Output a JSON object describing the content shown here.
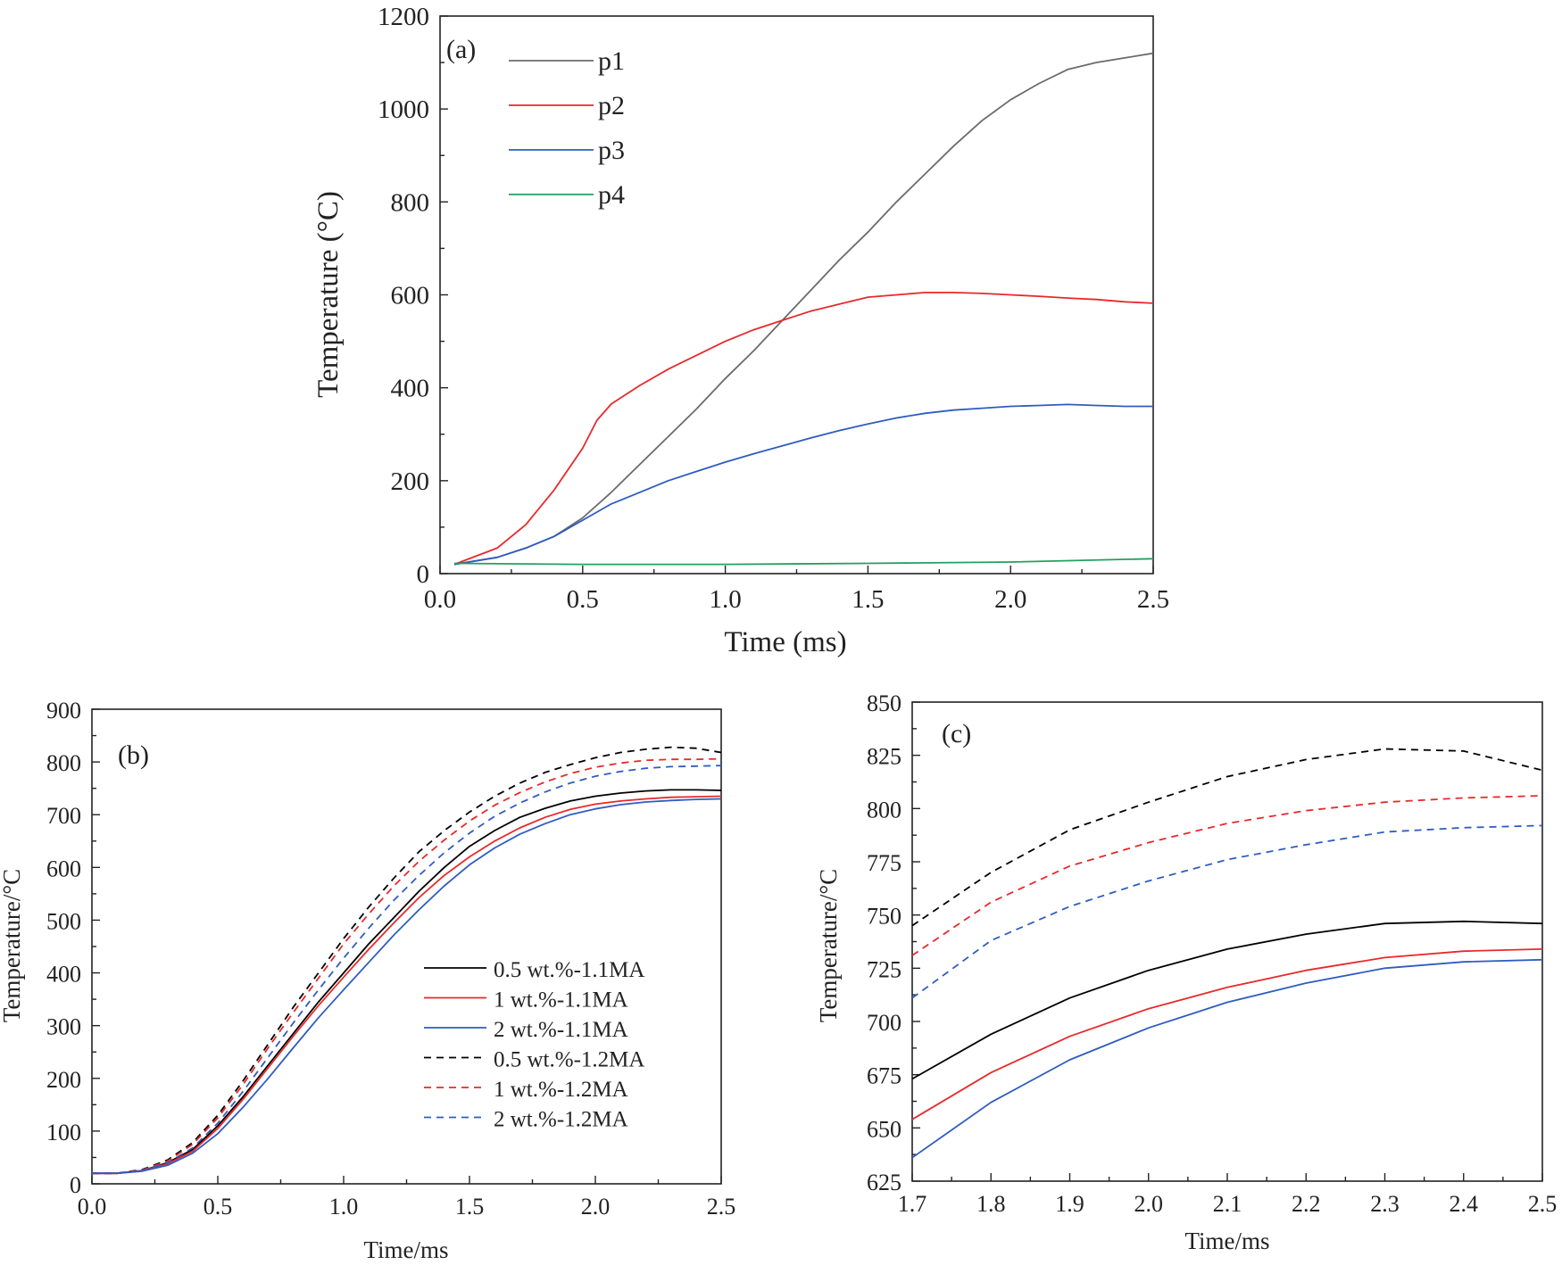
{
  "chart_data": [
    {
      "panel": "(a)",
      "type": "line",
      "xlabel": "Time (ms)",
      "ylabel": "Temperature (°C)",
      "xlim": [
        0,
        2.5
      ],
      "ylim": [
        0,
        1200
      ],
      "xticks": [
        "0.0",
        "0.5",
        "1.0",
        "1.5",
        "2.0",
        "2.5"
      ],
      "yticks": [
        "0",
        "200",
        "400",
        "600",
        "800",
        "1000",
        "1200"
      ],
      "legend_position": "top-left",
      "series": [
        {
          "name": "p1",
          "color": "#6b6b6b",
          "dash": "solid",
          "x": [
            0.05,
            0.2,
            0.3,
            0.4,
            0.5,
            0.6,
            0.7,
            0.8,
            0.9,
            1.0,
            1.1,
            1.2,
            1.3,
            1.4,
            1.5,
            1.6,
            1.7,
            1.8,
            1.9,
            2.0,
            2.1,
            2.2,
            2.3,
            2.4,
            2.5
          ],
          "y": [
            20,
            35,
            55,
            80,
            120,
            175,
            235,
            295,
            355,
            420,
            480,
            545,
            610,
            675,
            735,
            800,
            860,
            920,
            975,
            1020,
            1055,
            1085,
            1100,
            1110,
            1120
          ]
        },
        {
          "name": "p2",
          "color": "#e8292b",
          "dash": "solid",
          "x": [
            0.05,
            0.2,
            0.3,
            0.4,
            0.5,
            0.55,
            0.6,
            0.7,
            0.8,
            0.9,
            1.0,
            1.1,
            1.2,
            1.3,
            1.4,
            1.5,
            1.6,
            1.7,
            1.8,
            1.9,
            2.0,
            2.1,
            2.2,
            2.3,
            2.4,
            2.5
          ],
          "y": [
            20,
            55,
            105,
            180,
            270,
            330,
            365,
            405,
            440,
            470,
            500,
            525,
            545,
            565,
            580,
            595,
            600,
            605,
            605,
            603,
            600,
            597,
            593,
            590,
            585,
            582
          ]
        },
        {
          "name": "p3",
          "color": "#2f5cc0",
          "dash": "solid",
          "x": [
            0.05,
            0.2,
            0.3,
            0.4,
            0.5,
            0.6,
            0.7,
            0.8,
            0.9,
            1.0,
            1.1,
            1.2,
            1.3,
            1.4,
            1.5,
            1.6,
            1.7,
            1.8,
            1.9,
            2.0,
            2.1,
            2.2,
            2.3,
            2.4,
            2.5
          ],
          "y": [
            20,
            35,
            55,
            80,
            115,
            150,
            175,
            200,
            220,
            240,
            258,
            275,
            292,
            308,
            322,
            335,
            345,
            352,
            356,
            360,
            362,
            364,
            362,
            360,
            360
          ]
        },
        {
          "name": "p4",
          "color": "#23a060",
          "dash": "solid",
          "x": [
            0.05,
            0.5,
            1.0,
            1.5,
            2.0,
            2.5
          ],
          "y": [
            22,
            20,
            20,
            22,
            25,
            32
          ]
        }
      ]
    },
    {
      "panel": "(b)",
      "type": "line",
      "xlabel": "Time/ms",
      "ylabel": "Temperature/°C",
      "xlim": [
        0,
        2.5
      ],
      "ylim": [
        0,
        900
      ],
      "xticks": [
        "0.0",
        "0.5",
        "1.0",
        "1.5",
        "2.0",
        "2.5"
      ],
      "yticks": [
        "0",
        "100",
        "200",
        "300",
        "400",
        "500",
        "600",
        "700",
        "800",
        "900"
      ],
      "legend_position": "bottom-right",
      "series": [
        {
          "name": "0.5 wt.%-1.1MA",
          "color": "#000000",
          "dash": "solid",
          "x": [
            0,
            0.1,
            0.2,
            0.3,
            0.4,
            0.5,
            0.6,
            0.7,
            0.8,
            0.9,
            1.0,
            1.1,
            1.2,
            1.3,
            1.4,
            1.5,
            1.6,
            1.7,
            1.8,
            1.9,
            2.0,
            2.1,
            2.2,
            2.3,
            2.4,
            2.5
          ],
          "y": [
            20,
            20,
            25,
            40,
            65,
            110,
            165,
            225,
            285,
            345,
            400,
            455,
            505,
            555,
            600,
            640,
            670,
            695,
            712,
            726,
            735,
            741,
            745,
            747,
            747,
            746
          ]
        },
        {
          "name": "1 wt.%-1.1MA",
          "color": "#e8292b",
          "dash": "solid",
          "x": [
            0,
            0.1,
            0.2,
            0.3,
            0.4,
            0.5,
            0.6,
            0.7,
            0.8,
            0.9,
            1.0,
            1.1,
            1.2,
            1.3,
            1.4,
            1.5,
            1.6,
            1.7,
            1.8,
            1.9,
            2.0,
            2.1,
            2.2,
            2.3,
            2.4,
            2.5
          ],
          "y": [
            20,
            20,
            25,
            38,
            62,
            105,
            160,
            220,
            280,
            338,
            392,
            445,
            495,
            543,
            585,
            620,
            650,
            675,
            695,
            710,
            720,
            726,
            730,
            733,
            734,
            735
          ]
        },
        {
          "name": "2 wt.%-1.1MA",
          "color": "#2f5cc0",
          "dash": "solid",
          "x": [
            0,
            0.1,
            0.2,
            0.3,
            0.4,
            0.5,
            0.6,
            0.7,
            0.8,
            0.9,
            1.0,
            1.1,
            1.2,
            1.3,
            1.4,
            1.5,
            1.6,
            1.7,
            1.8,
            1.9,
            2.0,
            2.1,
            2.2,
            2.3,
            2.4,
            2.5
          ],
          "y": [
            20,
            20,
            24,
            35,
            58,
            95,
            145,
            200,
            258,
            315,
            368,
            420,
            472,
            520,
            565,
            605,
            637,
            663,
            683,
            700,
            711,
            719,
            724,
            727,
            729,
            730
          ]
        },
        {
          "name": "0.5 wt.%-1.2MA",
          "color": "#000000",
          "dash": "dashed",
          "x": [
            0,
            0.1,
            0.2,
            0.3,
            0.4,
            0.5,
            0.6,
            0.7,
            0.8,
            0.9,
            1.0,
            1.1,
            1.2,
            1.3,
            1.4,
            1.5,
            1.6,
            1.7,
            1.8,
            1.9,
            2.0,
            2.1,
            2.2,
            2.3,
            2.4,
            2.5
          ],
          "y": [
            20,
            20,
            27,
            45,
            78,
            130,
            195,
            265,
            335,
            400,
            465,
            525,
            580,
            630,
            670,
            705,
            735,
            760,
            780,
            795,
            808,
            818,
            824,
            828,
            826,
            818
          ]
        },
        {
          "name": "1 wt.%-1.2MA",
          "color": "#e8292b",
          "dash": "dashed",
          "x": [
            0,
            0.1,
            0.2,
            0.3,
            0.4,
            0.5,
            0.6,
            0.7,
            0.8,
            0.9,
            1.0,
            1.1,
            1.2,
            1.3,
            1.4,
            1.5,
            1.6,
            1.7,
            1.8,
            1.9,
            2.0,
            2.1,
            2.2,
            2.3,
            2.4,
            2.5
          ],
          "y": [
            20,
            20,
            26,
            43,
            75,
            125,
            188,
            258,
            325,
            390,
            455,
            512,
            565,
            612,
            652,
            688,
            718,
            742,
            762,
            778,
            790,
            798,
            803,
            805,
            805,
            806
          ]
        },
        {
          "name": "2 wt.%-1.2MA",
          "color": "#2f5cc0",
          "dash": "dashed",
          "x": [
            0,
            0.1,
            0.2,
            0.3,
            0.4,
            0.5,
            0.6,
            0.7,
            0.8,
            0.9,
            1.0,
            1.1,
            1.2,
            1.3,
            1.4,
            1.5,
            1.6,
            1.7,
            1.8,
            1.9,
            2.0,
            2.1,
            2.2,
            2.3,
            2.4,
            2.5
          ],
          "y": [
            20,
            20,
            25,
            40,
            68,
            115,
            175,
            240,
            305,
            368,
            428,
            485,
            538,
            585,
            628,
            665,
            697,
            722,
            743,
            760,
            773,
            782,
            788,
            791,
            792,
            793
          ]
        }
      ]
    },
    {
      "panel": "(c)",
      "type": "line",
      "xlabel": "Time/ms",
      "ylabel": "Temperature/°C",
      "xlim": [
        1.7,
        2.5
      ],
      "ylim": [
        625,
        850
      ],
      "xticks": [
        "1.7",
        "1.8",
        "1.9",
        "2.0",
        "2.1",
        "2.2",
        "2.3",
        "2.4",
        "2.5"
      ],
      "yticks": [
        "625",
        "650",
        "675",
        "700",
        "725",
        "750",
        "775",
        "800",
        "825",
        "850"
      ],
      "series": [
        {
          "name": "0.5 wt.%-1.1MA",
          "color": "#000000",
          "dash": "solid",
          "x": [
            1.7,
            1.8,
            1.9,
            2.0,
            2.1,
            2.2,
            2.3,
            2.4,
            2.5
          ],
          "y": [
            673,
            694,
            711,
            724,
            734,
            741,
            746,
            747,
            746
          ]
        },
        {
          "name": "1 wt.%-1.1MA",
          "color": "#e8292b",
          "dash": "solid",
          "x": [
            1.7,
            1.8,
            1.9,
            2.0,
            2.1,
            2.2,
            2.3,
            2.4,
            2.5
          ],
          "y": [
            654,
            676,
            693,
            706,
            716,
            724,
            730,
            733,
            734
          ]
        },
        {
          "name": "2 wt.%-1.1MA",
          "color": "#2f5cc0",
          "dash": "solid",
          "x": [
            1.7,
            1.8,
            1.9,
            2.0,
            2.1,
            2.2,
            2.3,
            2.4,
            2.5
          ],
          "y": [
            636,
            662,
            682,
            697,
            709,
            718,
            725,
            728,
            729
          ]
        },
        {
          "name": "0.5 wt.%-1.2MA",
          "color": "#000000",
          "dash": "dashed",
          "x": [
            1.7,
            1.8,
            1.9,
            2.0,
            2.1,
            2.2,
            2.3,
            2.4,
            2.5
          ],
          "y": [
            745,
            770,
            790,
            803,
            815,
            823,
            828,
            827,
            818
          ]
        },
        {
          "name": "1 wt.%-1.2MA",
          "color": "#e8292b",
          "dash": "dashed",
          "x": [
            1.7,
            1.8,
            1.9,
            2.0,
            2.1,
            2.2,
            2.3,
            2.4,
            2.5
          ],
          "y": [
            731,
            756,
            773,
            784,
            793,
            799,
            803,
            805,
            806
          ]
        },
        {
          "name": "2 wt.%-1.2MA",
          "color": "#2f5cc0",
          "dash": "dashed",
          "x": [
            1.7,
            1.8,
            1.9,
            2.0,
            2.1,
            2.2,
            2.3,
            2.4,
            2.5
          ],
          "y": [
            711,
            738,
            754,
            766,
            776,
            783,
            789,
            791,
            792
          ]
        }
      ]
    }
  ]
}
